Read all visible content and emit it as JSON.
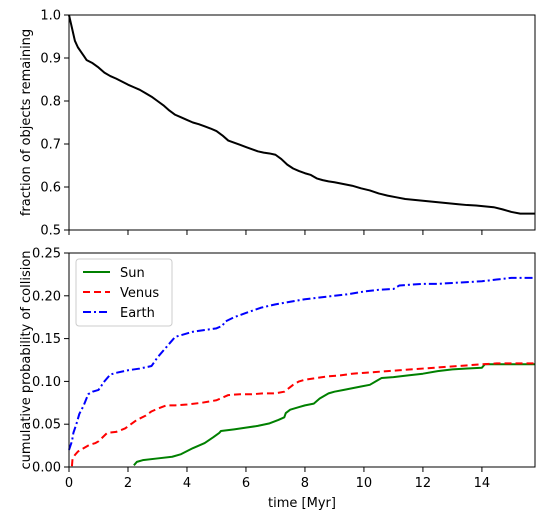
{
  "chart_data": [
    {
      "type": "line",
      "title": "",
      "xlabel": "",
      "ylabel": "fraction of objects remaining",
      "xlim": [
        0,
        15.8
      ],
      "ylim": [
        0.5,
        1.0
      ],
      "xticks": [
        0,
        2,
        4,
        6,
        8,
        10,
        12,
        14
      ],
      "yticks": [
        0.5,
        0.6,
        0.7,
        0.8,
        0.9,
        1.0
      ],
      "ytick_labels": [
        "0.5",
        "0.6",
        "0.7",
        "0.8",
        "0.9",
        "1.0"
      ],
      "grid": false,
      "series": [
        {
          "color": "#000000",
          "style": "solid",
          "x": [
            0,
            0.05,
            0.1,
            0.15,
            0.2,
            0.3,
            0.4,
            0.5,
            0.6,
            0.8,
            1.0,
            1.2,
            1.4,
            1.6,
            1.8,
            2.0,
            2.2,
            2.4,
            2.6,
            2.8,
            3.0,
            3.2,
            3.4,
            3.6,
            3.8,
            4.0,
            4.2,
            4.4,
            4.6,
            4.8,
            5.0,
            5.2,
            5.4,
            5.6,
            5.8,
            6.0,
            6.2,
            6.4,
            6.6,
            6.8,
            7.0,
            7.2,
            7.4,
            7.6,
            7.8,
            8.0,
            8.2,
            8.4,
            8.6,
            8.8,
            9.0,
            9.3,
            9.6,
            9.9,
            10.2,
            10.5,
            10.8,
            11.1,
            11.4,
            11.7,
            12.0,
            12.3,
            12.6,
            12.9,
            13.2,
            13.5,
            13.8,
            14.1,
            14.4,
            14.7,
            15.0,
            15.3,
            15.8
          ],
          "y": [
            1.0,
            0.985,
            0.97,
            0.955,
            0.94,
            0.925,
            0.915,
            0.905,
            0.895,
            0.888,
            0.878,
            0.866,
            0.858,
            0.852,
            0.845,
            0.838,
            0.832,
            0.826,
            0.818,
            0.81,
            0.8,
            0.79,
            0.778,
            0.768,
            0.762,
            0.756,
            0.75,
            0.746,
            0.741,
            0.736,
            0.73,
            0.72,
            0.708,
            0.703,
            0.698,
            0.693,
            0.688,
            0.683,
            0.68,
            0.678,
            0.675,
            0.665,
            0.652,
            0.643,
            0.637,
            0.632,
            0.628,
            0.62,
            0.616,
            0.613,
            0.611,
            0.607,
            0.603,
            0.597,
            0.592,
            0.585,
            0.58,
            0.576,
            0.572,
            0.57,
            0.568,
            0.566,
            0.564,
            0.562,
            0.56,
            0.558,
            0.557,
            0.555,
            0.553,
            0.548,
            0.542,
            0.538,
            0.538
          ]
        }
      ]
    },
    {
      "type": "line",
      "title": "",
      "xlabel": "time [Myr]",
      "ylabel": "cumulative probability of collision",
      "xlim": [
        0,
        15.8
      ],
      "ylim": [
        0.0,
        0.25
      ],
      "xticks": [
        0,
        2,
        4,
        6,
        8,
        10,
        12,
        14
      ],
      "xtick_labels": [
        "0",
        "2",
        "4",
        "6",
        "8",
        "10",
        "12",
        "14"
      ],
      "yticks": [
        0.0,
        0.05,
        0.1,
        0.15,
        0.2,
        0.25
      ],
      "ytick_labels": [
        "0.00",
        "0.05",
        "0.10",
        "0.15",
        "0.20",
        "0.25"
      ],
      "grid": false,
      "legend": "top-left",
      "series": [
        {
          "name": "Sun",
          "color": "#008000",
          "style": "solid",
          "x": [
            2.2,
            2.3,
            2.5,
            3.0,
            3.5,
            3.8,
            4.2,
            4.6,
            4.9,
            5.1,
            5.15,
            5.6,
            6.0,
            6.4,
            6.8,
            7.1,
            7.3,
            7.35,
            7.5,
            7.8,
            8.0,
            8.3,
            8.5,
            8.8,
            9.0,
            9.3,
            9.6,
            9.9,
            10.2,
            10.4,
            10.6,
            11.0,
            11.5,
            12.0,
            12.5,
            13.0,
            13.5,
            14.0,
            14.1,
            14.5,
            15.0,
            15.8
          ],
          "y": [
            0.002,
            0.006,
            0.008,
            0.01,
            0.012,
            0.015,
            0.022,
            0.028,
            0.035,
            0.04,
            0.042,
            0.044,
            0.046,
            0.048,
            0.051,
            0.055,
            0.058,
            0.063,
            0.067,
            0.07,
            0.072,
            0.074,
            0.08,
            0.086,
            0.088,
            0.09,
            0.092,
            0.094,
            0.096,
            0.1,
            0.104,
            0.105,
            0.107,
            0.109,
            0.112,
            0.114,
            0.115,
            0.116,
            0.12,
            0.12,
            0.12,
            0.12
          ],
          "y_end": 0.12
        },
        {
          "name": "Venus",
          "color": "#ff0000",
          "style": "dashed",
          "x": [
            0.1,
            0.12,
            0.2,
            0.3,
            0.5,
            0.7,
            0.9,
            1.0,
            1.3,
            1.6,
            1.9,
            2.1,
            2.3,
            2.6,
            2.8,
            3.0,
            3.3,
            3.6,
            4.0,
            4.5,
            5.0,
            5.4,
            5.8,
            6.2,
            6.6,
            7.0,
            7.3,
            7.6,
            7.8,
            8.0,
            8.4,
            8.8,
            9.2,
            9.6,
            10.0,
            10.4,
            10.8,
            11.2,
            11.6,
            12.0,
            12.4,
            12.8,
            13.2,
            13.6,
            14.0,
            14.5,
            15.0,
            15.8
          ],
          "y": [
            0.001,
            0.01,
            0.014,
            0.018,
            0.022,
            0.026,
            0.028,
            0.03,
            0.04,
            0.041,
            0.045,
            0.05,
            0.055,
            0.06,
            0.065,
            0.068,
            0.072,
            0.072,
            0.073,
            0.075,
            0.078,
            0.084,
            0.085,
            0.085,
            0.086,
            0.086,
            0.088,
            0.096,
            0.1,
            0.102,
            0.104,
            0.106,
            0.107,
            0.109,
            0.11,
            0.111,
            0.112,
            0.113,
            0.114,
            0.115,
            0.116,
            0.117,
            0.118,
            0.119,
            0.12,
            0.121,
            0.121,
            0.121
          ]
        },
        {
          "name": "Earth",
          "color": "#0000ff",
          "style": "dashdot",
          "x": [
            0,
            0.05,
            0.1,
            0.15,
            0.25,
            0.35,
            0.5,
            0.65,
            0.8,
            1.0,
            1.2,
            1.4,
            1.6,
            2.0,
            2.4,
            2.8,
            3.0,
            3.3,
            3.5,
            3.6,
            3.9,
            4.2,
            4.6,
            5.0,
            5.2,
            5.3,
            5.6,
            6.0,
            6.5,
            7.0,
            7.5,
            8.0,
            8.5,
            9.0,
            9.5,
            10.0,
            10.5,
            11.0,
            11.2,
            11.6,
            12.0,
            12.5,
            13.0,
            13.5,
            14.0,
            14.5,
            15.0,
            15.8
          ],
          "y": [
            0.02,
            0.025,
            0.03,
            0.04,
            0.05,
            0.062,
            0.072,
            0.085,
            0.088,
            0.09,
            0.1,
            0.108,
            0.11,
            0.113,
            0.115,
            0.118,
            0.128,
            0.14,
            0.148,
            0.152,
            0.155,
            0.158,
            0.16,
            0.162,
            0.165,
            0.17,
            0.175,
            0.18,
            0.186,
            0.19,
            0.193,
            0.196,
            0.198,
            0.2,
            0.202,
            0.205,
            0.207,
            0.208,
            0.212,
            0.213,
            0.214,
            0.214,
            0.215,
            0.216,
            0.217,
            0.219,
            0.221,
            0.221
          ]
        }
      ]
    }
  ]
}
